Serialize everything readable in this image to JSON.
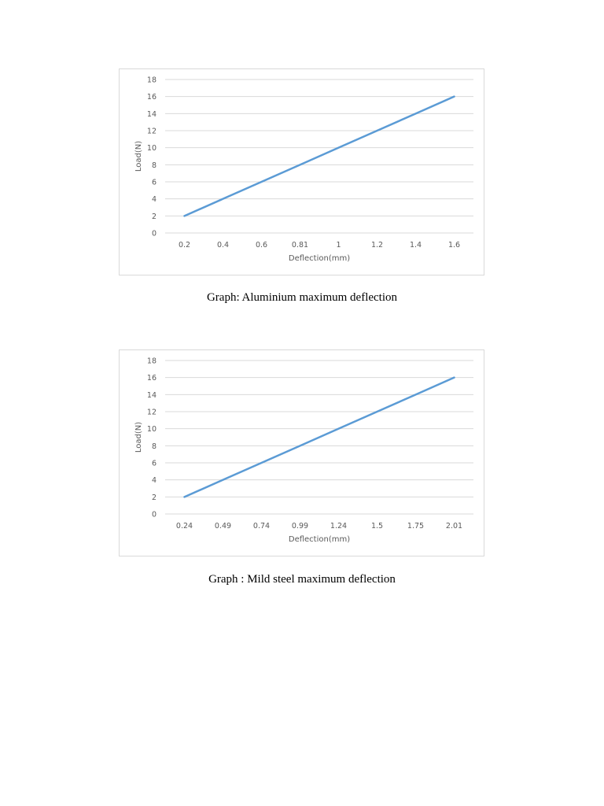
{
  "colors": {
    "series_line": "#5b9bd5"
  },
  "chart_data": [
    {
      "type": "line",
      "title": "",
      "xlabel": "Deflection(mm)",
      "ylabel": "Load(N)",
      "categories": [
        "0.2",
        "0.4",
        "0.6",
        "0.81",
        "1",
        "1.2",
        "1.4",
        "1.6"
      ],
      "series": [
        {
          "values": [
            2,
            4,
            6,
            8,
            10,
            12,
            14,
            16
          ]
        }
      ],
      "ylim": [
        0,
        18
      ],
      "yticks": [
        "0",
        "2",
        "4",
        "6",
        "8",
        "10",
        "12",
        "14",
        "16",
        "18"
      ],
      "grid": true,
      "legend": "none"
    },
    {
      "type": "line",
      "title": "",
      "xlabel": "Deflection(mm)",
      "ylabel": "Load(N)",
      "categories": [
        "0.24",
        "0.49",
        "0.74",
        "0.99",
        "1.24",
        "1.5",
        "1.75",
        "2.01"
      ],
      "series": [
        {
          "values": [
            2,
            4,
            6,
            8,
            10,
            12,
            14,
            16
          ]
        }
      ],
      "ylim": [
        0,
        18
      ],
      "yticks": [
        "0",
        "2",
        "4",
        "6",
        "8",
        "10",
        "12",
        "14",
        "16",
        "18"
      ],
      "grid": true,
      "legend": "none"
    }
  ],
  "captions": [
    "Graph: Aluminium maximum deflection",
    "Graph : Mild steel maximum deflection"
  ]
}
